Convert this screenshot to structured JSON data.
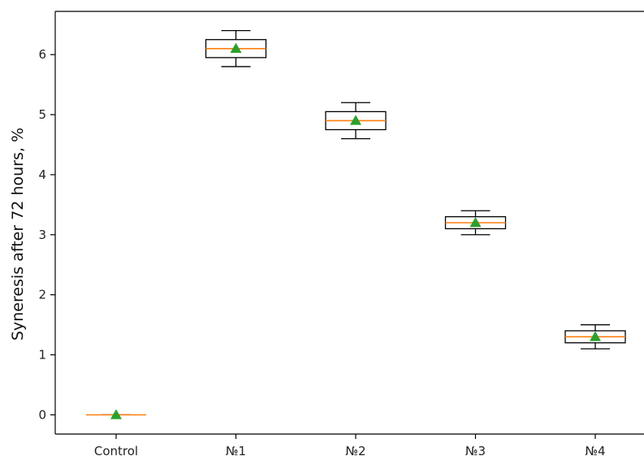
{
  "chart_data": {
    "type": "box",
    "title": "",
    "xlabel": "",
    "ylabel": "Syneresis after 72 hours, %",
    "ylim": [
      -0.32,
      6.72
    ],
    "yticks": [
      0,
      1,
      2,
      3,
      4,
      5,
      6
    ],
    "categories": [
      "Control",
      "№1",
      "№2",
      "№3",
      "№4"
    ],
    "boxes": [
      {
        "category": "Control",
        "whisker_low": 0.0,
        "q1": 0.0,
        "median": 0.0,
        "q3": 0.0,
        "whisker_high": 0.0,
        "mean": 0.0
      },
      {
        "category": "№1",
        "whisker_low": 5.8,
        "q1": 5.95,
        "median": 6.1,
        "q3": 6.25,
        "whisker_high": 6.4,
        "mean": 6.1
      },
      {
        "category": "№2",
        "whisker_low": 4.6,
        "q1": 4.75,
        "median": 4.9,
        "q3": 5.05,
        "whisker_high": 5.2,
        "mean": 4.9
      },
      {
        "category": "№3",
        "whisker_low": 3.0,
        "q1": 3.1,
        "median": 3.2,
        "q3": 3.3,
        "whisker_high": 3.4,
        "mean": 3.2
      },
      {
        "category": "№4",
        "whisker_low": 1.1,
        "q1": 1.2,
        "median": 1.3,
        "q3": 1.4,
        "whisker_high": 1.5,
        "mean": 1.3
      }
    ],
    "grid": false,
    "legend": "none",
    "colors": {
      "box": "#000000",
      "median": "#ff7f0e",
      "mean_marker": "#2ca02c",
      "axis": "#000000"
    },
    "mean_marker": "triangle"
  }
}
